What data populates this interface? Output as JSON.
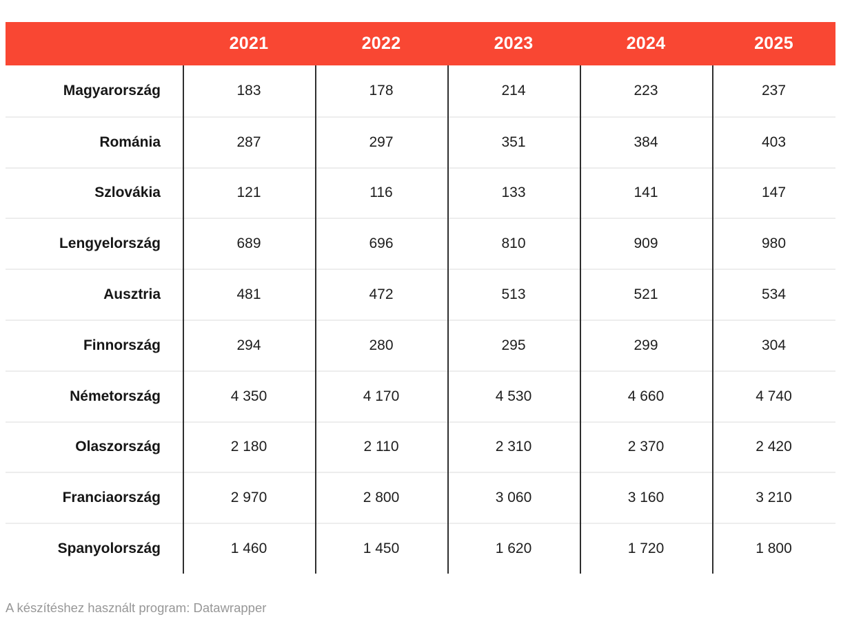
{
  "table": {
    "columns": [
      "2021",
      "2022",
      "2023",
      "2024",
      "2025"
    ],
    "rows": [
      {
        "label": "Magyarország",
        "values": [
          "183",
          "178",
          "214",
          "223",
          "237"
        ]
      },
      {
        "label": "Románia",
        "values": [
          "287",
          "297",
          "351",
          "384",
          "403"
        ]
      },
      {
        "label": "Szlovákia",
        "values": [
          "121",
          "116",
          "133",
          "141",
          "147"
        ]
      },
      {
        "label": "Lengyelország",
        "values": [
          "689",
          "696",
          "810",
          "909",
          "980"
        ]
      },
      {
        "label": "Ausztria",
        "values": [
          "481",
          "472",
          "513",
          "521",
          "534"
        ]
      },
      {
        "label": "Finnország",
        "values": [
          "294",
          "280",
          "295",
          "299",
          "304"
        ]
      },
      {
        "label": "Németország",
        "values": [
          "4 350",
          "4 170",
          "4 530",
          "4 660",
          "4 740"
        ]
      },
      {
        "label": "Olaszország",
        "values": [
          "2 180",
          "2 110",
          "2 310",
          "2 370",
          "2 420"
        ]
      },
      {
        "label": "Franciaország",
        "values": [
          "2 970",
          "2 800",
          "3 060",
          "3 160",
          "3 210"
        ]
      },
      {
        "label": "Spanyolország",
        "values": [
          "1 460",
          "1 450",
          "1 620",
          "1 720",
          "1 800"
        ]
      }
    ]
  },
  "footer": {
    "text": "A készítéshez használt program: Datawrapper"
  },
  "colors": {
    "header_bg": "#f94733",
    "header_text": "#ffffff",
    "divider_dark": "#2e2e2e",
    "divider_light": "#ededed",
    "footer_text": "#979797"
  },
  "chart_data": {
    "type": "table",
    "title": "",
    "categories": [
      "2021",
      "2022",
      "2023",
      "2024",
      "2025"
    ],
    "series": [
      {
        "name": "Magyarország",
        "values": [
          183,
          178,
          214,
          223,
          237
        ]
      },
      {
        "name": "Románia",
        "values": [
          287,
          297,
          351,
          384,
          403
        ]
      },
      {
        "name": "Szlovákia",
        "values": [
          121,
          116,
          133,
          141,
          147
        ]
      },
      {
        "name": "Lengyelország",
        "values": [
          689,
          696,
          810,
          909,
          980
        ]
      },
      {
        "name": "Ausztria",
        "values": [
          481,
          472,
          513,
          521,
          534
        ]
      },
      {
        "name": "Finnország",
        "values": [
          294,
          280,
          295,
          299,
          304
        ]
      },
      {
        "name": "Németország",
        "values": [
          4350,
          4170,
          4530,
          4660,
          4740
        ]
      },
      {
        "name": "Olaszország",
        "values": [
          2180,
          2110,
          2310,
          2370,
          2420
        ]
      },
      {
        "name": "Franciaország",
        "values": [
          2970,
          2800,
          3060,
          3160,
          3210
        ]
      },
      {
        "name": "Spanyolország",
        "values": [
          1460,
          1450,
          1620,
          1720,
          1800
        ]
      }
    ],
    "annotations": [
      "A készítéshez használt program: Datawrapper"
    ],
    "layout_hints": {
      "header_background": "#f94733",
      "label_alignment": "right",
      "value_alignment": "center",
      "grid": "vertical-dark, horizontal-light"
    }
  }
}
